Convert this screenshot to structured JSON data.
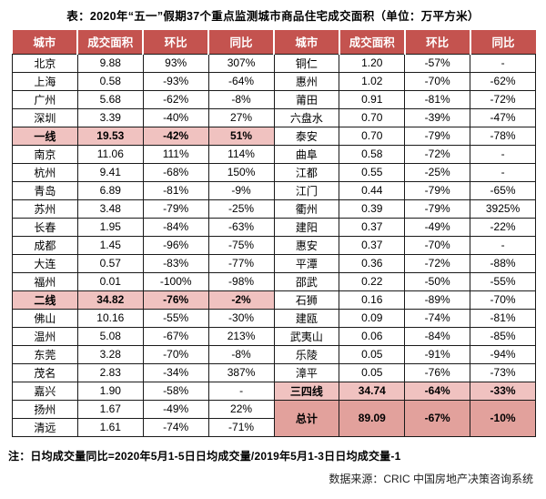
{
  "chart_data": {
    "type": "table",
    "title": "表：2020年“五一”假期37个重点监测城市商品住宅成交面积（单位：万平方米）",
    "unit": "万平方米",
    "columns": [
      "城市",
      "成交面积",
      "环比",
      "同比",
      "城市",
      "成交面积",
      "环比",
      "同比"
    ],
    "left_rows": [
      {
        "city": "北京",
        "area": "9.88",
        "mom": "93%",
        "yoy": "307%"
      },
      {
        "city": "上海",
        "area": "0.58",
        "mom": "-93%",
        "yoy": "-64%"
      },
      {
        "city": "广州",
        "area": "5.68",
        "mom": "-62%",
        "yoy": "-8%"
      },
      {
        "city": "深圳",
        "area": "3.39",
        "mom": "-40%",
        "yoy": "27%"
      },
      {
        "city": "一线",
        "area": "19.53",
        "mom": "-42%",
        "yoy": "51%",
        "type": "tier"
      },
      {
        "city": "南京",
        "area": "11.06",
        "mom": "111%",
        "yoy": "114%"
      },
      {
        "city": "杭州",
        "area": "9.41",
        "mom": "-68%",
        "yoy": "150%"
      },
      {
        "city": "青岛",
        "area": "6.89",
        "mom": "-81%",
        "yoy": "-9%"
      },
      {
        "city": "苏州",
        "area": "3.48",
        "mom": "-79%",
        "yoy": "-25%"
      },
      {
        "city": "长春",
        "area": "1.95",
        "mom": "-84%",
        "yoy": "-63%"
      },
      {
        "city": "成都",
        "area": "1.45",
        "mom": "-96%",
        "yoy": "-75%"
      },
      {
        "city": "大连",
        "area": "0.57",
        "mom": "-83%",
        "yoy": "-77%"
      },
      {
        "city": "福州",
        "area": "0.01",
        "mom": "-100%",
        "yoy": "-98%"
      },
      {
        "city": "二线",
        "area": "34.82",
        "mom": "-76%",
        "yoy": "-2%",
        "type": "tier"
      },
      {
        "city": "佛山",
        "area": "10.16",
        "mom": "-55%",
        "yoy": "-30%"
      },
      {
        "city": "温州",
        "area": "5.08",
        "mom": "-67%",
        "yoy": "213%"
      },
      {
        "city": "东莞",
        "area": "3.28",
        "mom": "-70%",
        "yoy": "-8%"
      },
      {
        "city": "茂名",
        "area": "2.83",
        "mom": "-34%",
        "yoy": "387%"
      },
      {
        "city": "嘉兴",
        "area": "1.90",
        "mom": "-58%",
        "yoy": "-"
      },
      {
        "city": "扬州",
        "area": "1.67",
        "mom": "-49%",
        "yoy": "22%"
      },
      {
        "city": "清远",
        "area": "1.61",
        "mom": "-74%",
        "yoy": "-71%"
      }
    ],
    "right_rows": [
      {
        "city": "铜仁",
        "area": "1.20",
        "mom": "-57%",
        "yoy": "-"
      },
      {
        "city": "惠州",
        "area": "1.02",
        "mom": "-70%",
        "yoy": "-62%"
      },
      {
        "city": "莆田",
        "area": "0.91",
        "mom": "-81%",
        "yoy": "-72%"
      },
      {
        "city": "六盘水",
        "area": "0.70",
        "mom": "-39%",
        "yoy": "-47%"
      },
      {
        "city": "泰安",
        "area": "0.70",
        "mom": "-79%",
        "yoy": "-78%"
      },
      {
        "city": "曲阜",
        "area": "0.58",
        "mom": "-72%",
        "yoy": "-"
      },
      {
        "city": "江都",
        "area": "0.55",
        "mom": "-25%",
        "yoy": "-"
      },
      {
        "city": "江门",
        "area": "0.44",
        "mom": "-79%",
        "yoy": "-65%"
      },
      {
        "city": "衢州",
        "area": "0.39",
        "mom": "-79%",
        "yoy": "3925%"
      },
      {
        "city": "建阳",
        "area": "0.37",
        "mom": "-49%",
        "yoy": "-22%"
      },
      {
        "city": "惠安",
        "area": "0.37",
        "mom": "-70%",
        "yoy": "-"
      },
      {
        "city": "平潭",
        "area": "0.36",
        "mom": "-72%",
        "yoy": "-88%"
      },
      {
        "city": "邵武",
        "area": "0.22",
        "mom": "-50%",
        "yoy": "-55%"
      },
      {
        "city": "石狮",
        "area": "0.16",
        "mom": "-89%",
        "yoy": "-70%"
      },
      {
        "city": "建瓯",
        "area": "0.09",
        "mom": "-74%",
        "yoy": "-81%"
      },
      {
        "city": "武夷山",
        "area": "0.06",
        "mom": "-84%",
        "yoy": "-85%"
      },
      {
        "city": "乐陵",
        "area": "0.05",
        "mom": "-91%",
        "yoy": "-94%"
      },
      {
        "city": "漳平",
        "area": "0.05",
        "mom": "-76%",
        "yoy": "-73%"
      },
      {
        "city": "三四线",
        "area": "34.74",
        "mom": "-64%",
        "yoy": "-33%",
        "type": "tier"
      },
      {
        "city": "总计",
        "area": "89.09",
        "mom": "-67%",
        "yoy": "-10%",
        "type": "total",
        "rowspan": 2
      }
    ],
    "note": "注：日均成交量同比=2020年5月1-5日日均成交量/2019年5月1-3日日均成交量-1",
    "source": "数据来源：CRIC 中国房地产决策咨询系统",
    "colors": {
      "header_bg": "#C4534F",
      "tier_bg": "#F0C2C0",
      "total_bg": "#E2A19C",
      "header_text": "#FFFFFF"
    }
  }
}
